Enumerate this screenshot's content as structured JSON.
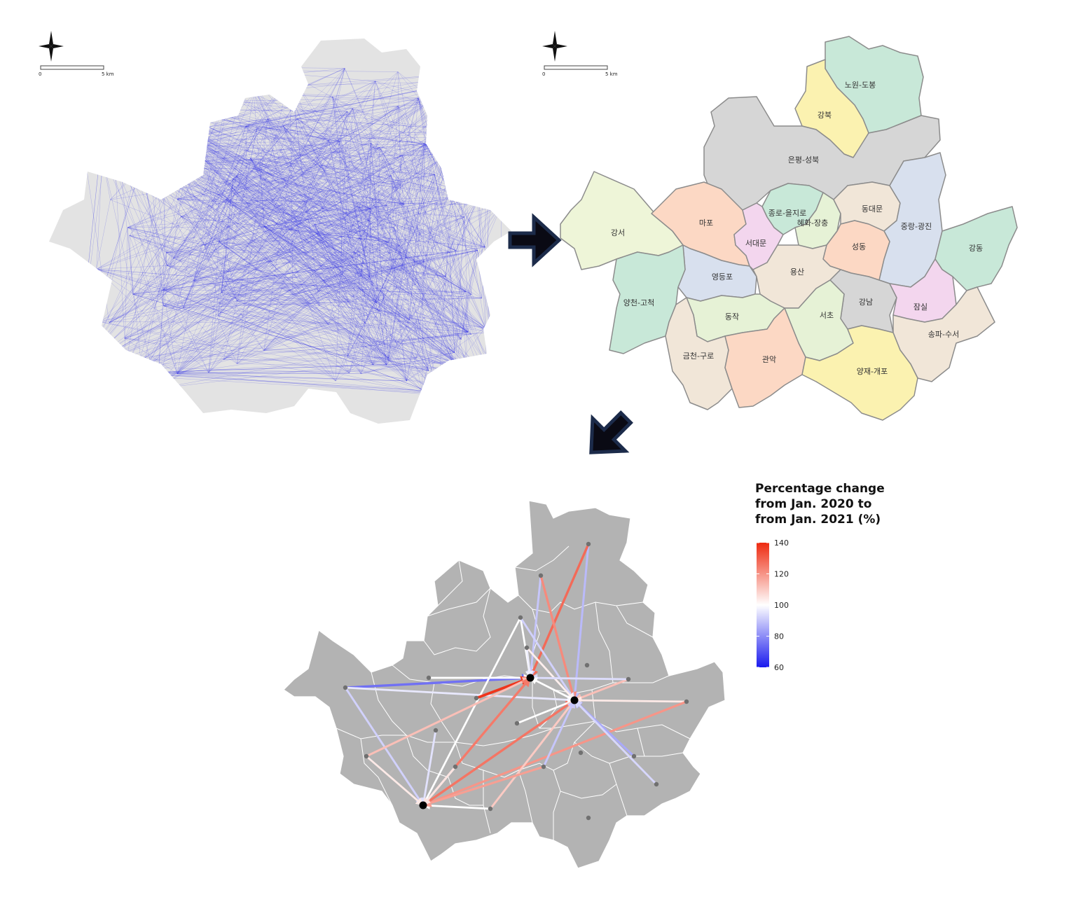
{
  "panel1": {
    "scale": {
      "zero": "0",
      "dist": "5 km"
    },
    "network_color": "#2a2ae6",
    "base_color": "#e3e3e3"
  },
  "panel2": {
    "scale": {
      "zero": "0",
      "dist": "5 km"
    },
    "districts": [
      {
        "label": "노원-도봉",
        "color": "#c8e8d8"
      },
      {
        "label": "강북",
        "color": "#fbf2b0"
      },
      {
        "label": "은평-성북",
        "color": "#d6d6d6"
      },
      {
        "label": "종로-을지로",
        "color": "#c8e8d8"
      },
      {
        "label": "혜화-장충",
        "color": "#e6f2d6"
      },
      {
        "label": "동대문",
        "color": "#f1e6d8"
      },
      {
        "label": "중랑-광진",
        "color": "#d8e0ee"
      },
      {
        "label": "강서",
        "color": "#eef5d8"
      },
      {
        "label": "마포",
        "color": "#fcd8c4"
      },
      {
        "label": "서대문",
        "color": "#f3d6ee"
      },
      {
        "label": "성동",
        "color": "#fcd8c4"
      },
      {
        "label": "강동",
        "color": "#c8e8d8"
      },
      {
        "label": "영등포",
        "color": "#d8e0ee"
      },
      {
        "label": "용산",
        "color": "#f1e6d8"
      },
      {
        "label": "양천-고척",
        "color": "#c8e8d8"
      },
      {
        "label": "강남",
        "color": "#d6d6d6"
      },
      {
        "label": "잠실",
        "color": "#f3d6ee"
      },
      {
        "label": "동작",
        "color": "#e6f2d6"
      },
      {
        "label": "서초",
        "color": "#e6f2d6"
      },
      {
        "label": "송파-수서",
        "color": "#f1e6d8"
      },
      {
        "label": "금천-구로",
        "color": "#f1e6d8"
      },
      {
        "label": "관악",
        "color": "#fcd8c4"
      },
      {
        "label": "양재-개포",
        "color": "#fbf2b0"
      }
    ]
  },
  "panel3": {
    "base_color": "#b3b3b3",
    "hub_color": "#000000",
    "node_color": "#707070",
    "legend": {
      "title_lines": [
        "Percentage change",
        "from Jan. 2020 to",
        "from Jan. 2021 (%)"
      ],
      "ticks": [
        "140",
        "120",
        "100",
        "80",
        "60"
      ],
      "range": [
        60,
        140
      ],
      "colors": {
        "low": "#1a1aee",
        "mid": "#ffffff",
        "high": "#ee2a10"
      }
    },
    "flows": [
      {
        "from": "A",
        "to": "H1",
        "value": 75
      },
      {
        "from": "A",
        "to": "H3",
        "value": 92
      },
      {
        "from": "A",
        "to": "H2",
        "value": 96
      },
      {
        "from": "B",
        "to": "H1",
        "value": 100
      },
      {
        "from": "N1",
        "to": "H2",
        "value": 88
      },
      {
        "from": "N1",
        "to": "H1",
        "value": 128
      },
      {
        "from": "N2",
        "to": "H1",
        "value": 90
      },
      {
        "from": "N2",
        "to": "H2",
        "value": 122
      },
      {
        "from": "N3",
        "to": "H1",
        "value": 100
      },
      {
        "from": "N3",
        "to": "H3",
        "value": 100
      },
      {
        "from": "N3",
        "to": "H2",
        "value": 92
      },
      {
        "from": "N4",
        "to": "H1",
        "value": 97
      },
      {
        "from": "N4",
        "to": "H2",
        "value": 103
      },
      {
        "from": "E1",
        "to": "H2",
        "value": 112
      },
      {
        "from": "E1",
        "to": "H1",
        "value": 94
      },
      {
        "from": "E2",
        "to": "H2",
        "value": 104
      },
      {
        "from": "E2",
        "to": "H3",
        "value": 120
      },
      {
        "from": "H3",
        "to": "H1",
        "value": 100
      },
      {
        "from": "H3",
        "to": "H2",
        "value": 126
      },
      {
        "from": "C1",
        "to": "H1",
        "value": 138
      },
      {
        "from": "C2",
        "to": "H2",
        "value": 100
      },
      {
        "from": "C3",
        "to": "H3",
        "value": 95
      },
      {
        "from": "S1",
        "to": "H3",
        "value": 100
      },
      {
        "from": "S1",
        "to": "H2",
        "value": 110
      },
      {
        "from": "S2",
        "to": "H2",
        "value": 90
      },
      {
        "from": "S2",
        "to": "H3",
        "value": 118
      },
      {
        "from": "S3",
        "to": "H2",
        "value": 85
      },
      {
        "from": "S4",
        "to": "H2",
        "value": 93
      },
      {
        "from": "W1",
        "to": "H1",
        "value": 112
      },
      {
        "from": "W1",
        "to": "H3",
        "value": 104
      },
      {
        "from": "H2",
        "to": "H1",
        "value": 100
      },
      {
        "from": "H1",
        "to": "H3",
        "value": 101
      },
      {
        "from": "C4",
        "to": "H1",
        "value": 125
      },
      {
        "from": "C4",
        "to": "H3",
        "value": 105
      }
    ]
  }
}
